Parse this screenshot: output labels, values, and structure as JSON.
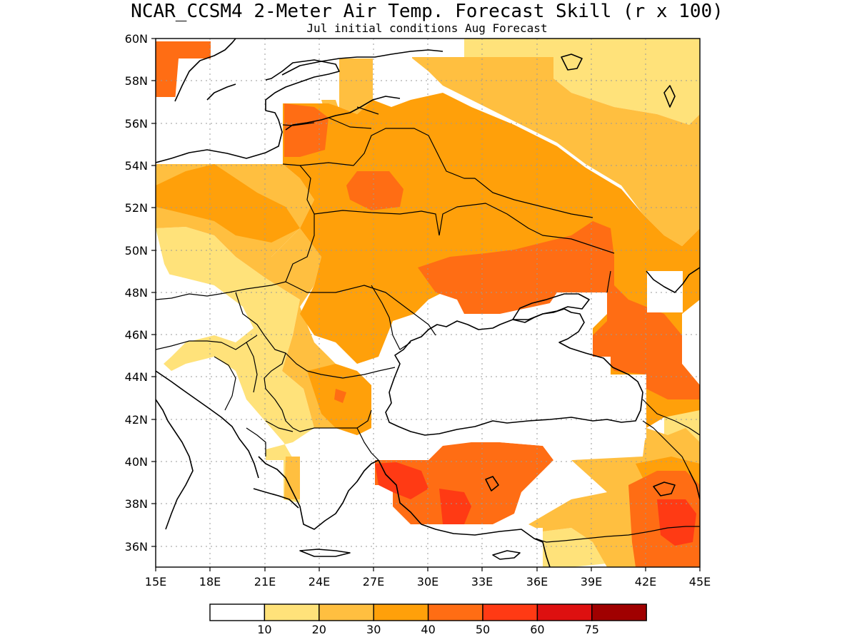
{
  "title": "NCAR_CCSM4 2-Meter Air Temp. Forecast Skill (r x 100)",
  "subtitle": "Jul initial conditions  Aug Forecast",
  "map": {
    "lon_range": [
      15,
      45
    ],
    "lat_range": [
      35,
      60
    ],
    "lon_ticks": [
      "15E",
      "18E",
      "21E",
      "24E",
      "27E",
      "30E",
      "33E",
      "36E",
      "39E",
      "42E",
      "45E"
    ],
    "lat_ticks": [
      "36N",
      "38N",
      "40N",
      "42N",
      "44N",
      "46N",
      "48N",
      "50N",
      "52N",
      "54N",
      "56N",
      "58N",
      "60N"
    ],
    "grid": "dotted"
  },
  "colorbar": {
    "colors": [
      "#ffffff",
      "#ffe27a",
      "#ffbf40",
      "#ffa00a",
      "#ff6d14",
      "#ff3a14",
      "#de1010",
      "#a00000"
    ],
    "labels": [
      "10",
      "20",
      "30",
      "40",
      "50",
      "60",
      "75"
    ]
  }
}
